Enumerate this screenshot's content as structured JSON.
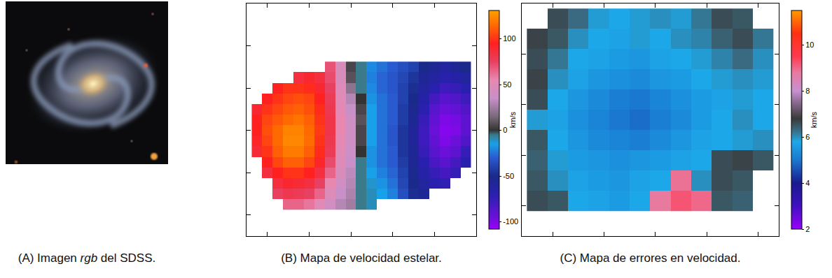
{
  "image": {
    "type": "image",
    "caption": "(A) Imagen rgb del SDSS.",
    "caption_italic": "rgb"
  },
  "chart_data": [
    {
      "type": "heatmap",
      "caption": "(B) Mapa de velocidad estelar.",
      "x": [
        1,
        2,
        3,
        4,
        5,
        6,
        7,
        8,
        9,
        10,
        11,
        12,
        13,
        14,
        15,
        16,
        17,
        18,
        19,
        20,
        21
      ],
      "y": [
        3,
        4,
        5,
        6,
        7,
        8,
        9,
        10,
        11,
        12,
        13,
        14,
        15,
        16
      ],
      "z": [
        [
          null,
          null,
          null,
          65,
          65,
          60,
          50,
          40,
          30,
          25,
          -5,
          -10,
          null,
          null,
          null,
          null,
          null,
          null,
          null,
          null,
          null
        ],
        [
          null,
          null,
          75,
          80,
          78,
          75,
          65,
          48,
          35,
          28,
          -5,
          -10,
          -15,
          -22,
          -35,
          -48,
          -55,
          null,
          null,
          null,
          null
        ],
        [
          null,
          null,
          85,
          90,
          88,
          85,
          75,
          55,
          40,
          30,
          -5,
          -12,
          -18,
          -25,
          -38,
          -50,
          -60,
          -70,
          -72,
          null,
          null
        ],
        [
          null,
          85,
          95,
          100,
          100,
          95,
          85,
          65,
          45,
          32,
          -5,
          -15,
          -22,
          -28,
          -40,
          -52,
          -65,
          -75,
          -80,
          -75,
          null
        ],
        [
          null,
          95,
          105,
          112,
          112,
          105,
          92,
          72,
          48,
          35,
          -5,
          -18,
          -25,
          -30,
          -42,
          -55,
          -70,
          -82,
          -88,
          -80,
          -70
        ],
        [
          88,
          100,
          112,
          120,
          120,
          112,
          98,
          78,
          50,
          36,
          0,
          -18,
          -25,
          -30,
          -45,
          -55,
          -75,
          -88,
          -95,
          -90,
          -75
        ],
        [
          92,
          105,
          115,
          124,
          124,
          116,
          100,
          80,
          52,
          38,
          5,
          -15,
          -25,
          -32,
          -45,
          -58,
          -78,
          -92,
          -100,
          -95,
          -85
        ],
        [
          95,
          108,
          115,
          122,
          122,
          115,
          102,
          82,
          55,
          38,
          5,
          -15,
          -25,
          -32,
          -45,
          -58,
          -78,
          -95,
          -102,
          -100,
          -90
        ],
        [
          95,
          105,
          110,
          115,
          118,
          112,
          100,
          82,
          55,
          38,
          8,
          -15,
          -25,
          -30,
          -42,
          -55,
          -75,
          -92,
          -100,
          -98,
          -90
        ],
        [
          90,
          100,
          105,
          110,
          112,
          108,
          98,
          80,
          52,
          35,
          5,
          -15,
          -25,
          -30,
          -42,
          -52,
          -70,
          -88,
          -95,
          -92,
          -85
        ],
        [
          null,
          95,
          100,
          105,
          108,
          105,
          95,
          78,
          50,
          30,
          0,
          -18,
          -25,
          -30,
          -40,
          -50,
          -65,
          -80,
          -88,
          -85,
          -78
        ],
        [
          null,
          null,
          95,
          100,
          100,
          98,
          90,
          75,
          48,
          20,
          -5,
          -20,
          -28,
          -32,
          -40,
          -48,
          -60,
          -70,
          -78,
          -75,
          -70
        ],
        [
          null,
          null,
          null,
          null,
          85,
          90,
          85,
          72,
          45,
          8,
          -5,
          -22,
          -28,
          -32,
          -38,
          -45,
          -55,
          -62,
          -68,
          -65,
          -60
        ],
        [
          null,
          null,
          null,
          null,
          null,
          null,
          null,
          70,
          45,
          5,
          -5,
          -20,
          -25,
          -30,
          -35,
          -40,
          -50,
          -55,
          -60,
          -55,
          -50
        ]
      ],
      "xlim": [
        0,
        22
      ],
      "ylim": [
        0,
        22
      ],
      "xticks": [
        2,
        6,
        10,
        14,
        18
      ],
      "yticks": [
        2,
        6,
        10,
        14,
        18
      ],
      "zlim": [
        -108,
        131
      ],
      "zticks": [
        -100,
        -50,
        0,
        50,
        100
      ],
      "colorbar_title": "km/s",
      "tick_labels": false,
      "grid": false
    },
    {
      "type": "heatmap",
      "caption": "(C) Mapa de errores en velocidad.",
      "x": [
        1.5,
        3.5,
        5.5,
        7.5,
        9.5,
        11.5,
        13.5,
        15.5,
        17.5,
        19.5,
        21.5,
        23.5
      ],
      "y": [
        3.5,
        5.5,
        7.5,
        9.5,
        11.5,
        13.5,
        15.5,
        17.5,
        19.5,
        21.5
      ],
      "z": [
        [
          6.6,
          6.5,
          5.8,
          5.7,
          5.6,
          5.8,
          8.8,
          9.2,
          9.0,
          6.5,
          6.4,
          null
        ],
        [
          6.5,
          6.0,
          5.7,
          5.6,
          5.5,
          5.7,
          5.8,
          8.9,
          6.0,
          6.6,
          6.5,
          null
        ],
        [
          6.4,
          5.9,
          5.6,
          5.5,
          5.4,
          5.5,
          5.6,
          5.7,
          5.8,
          6.6,
          6.7,
          6.5
        ],
        [
          6.5,
          5.8,
          5.5,
          5.3,
          5.2,
          5.1,
          5.3,
          5.5,
          5.7,
          5.8,
          5.9,
          6.0
        ],
        [
          5.9,
          5.7,
          5.4,
          5.2,
          5.0,
          4.9,
          5.1,
          5.3,
          5.6,
          5.8,
          6.0,
          5.8
        ],
        [
          6.6,
          5.8,
          5.5,
          5.3,
          5.1,
          5.0,
          5.2,
          5.4,
          5.6,
          5.7,
          5.9,
          5.8
        ],
        [
          6.7,
          6.0,
          5.7,
          5.5,
          5.4,
          5.3,
          5.5,
          5.6,
          5.8,
          5.9,
          6.0,
          5.9
        ],
        [
          6.6,
          6.2,
          5.8,
          5.7,
          5.6,
          5.5,
          5.7,
          5.8,
          5.9,
          6.1,
          6.3,
          6.0
        ],
        [
          6.7,
          6.5,
          6.0,
          5.8,
          5.7,
          5.9,
          5.8,
          6.0,
          6.1,
          6.4,
          6.6,
          6.2
        ],
        [
          null,
          6.6,
          6.3,
          5.9,
          5.8,
          5.9,
          6.0,
          5.9,
          6.2,
          6.6,
          6.5,
          null
        ]
      ],
      "xlim": [
        0,
        25
      ],
      "ylim": [
        0,
        23
      ],
      "xticks": [
        3,
        8,
        13,
        18,
        23
      ],
      "yticks": [
        3,
        8,
        13,
        18
      ],
      "zlim": [
        2,
        11.5
      ],
      "zticks": [
        2,
        4,
        6,
        8,
        10
      ],
      "colorbar_title": "km/s",
      "tick_labels": false,
      "grid": false
    }
  ]
}
